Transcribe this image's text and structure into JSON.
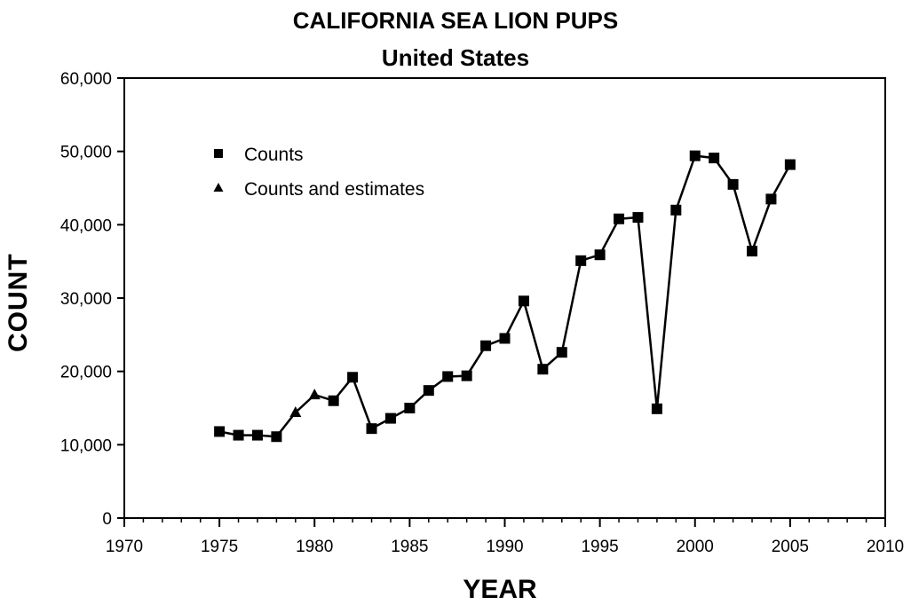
{
  "chart_data": {
    "type": "line",
    "title": "CALIFORNIA SEA LION PUPS",
    "subtitle": "United States",
    "xlabel": "YEAR",
    "ylabel": "COUNT",
    "xlim": [
      1970,
      2010
    ],
    "ylim": [
      0,
      60000
    ],
    "x_ticks": [
      1970,
      1975,
      1980,
      1985,
      1990,
      1995,
      2000,
      2005,
      2010
    ],
    "x_tick_labels": [
      "1970",
      "1975",
      "1980",
      "1985",
      "1990",
      "1995",
      "2000",
      "2005",
      "2010"
    ],
    "y_ticks": [
      0,
      10000,
      20000,
      30000,
      40000,
      50000,
      60000
    ],
    "y_tick_labels": [
      "0",
      "10,000",
      "20,000",
      "30,000",
      "40,000",
      "50,000",
      "60,000"
    ],
    "grid": false,
    "legend_position": "top-left",
    "legend": [
      {
        "label": "Counts",
        "marker": "square"
      },
      {
        "label": "Counts and estimates",
        "marker": "triangle"
      }
    ],
    "series": [
      {
        "name": "Counts",
        "marker": "square",
        "x": [
          1975,
          1976,
          1977,
          1978,
          1981,
          1982,
          1983,
          1984,
          1985,
          1986,
          1987,
          1988,
          1989,
          1990,
          1991,
          1992,
          1993,
          1994,
          1995,
          1996,
          1997,
          1998,
          1999,
          2000,
          2001,
          2002,
          2003,
          2004,
          2005
        ],
        "y": [
          11800,
          11300,
          11300,
          11100,
          16000,
          19200,
          12200,
          13600,
          15000,
          17400,
          19300,
          19400,
          23500,
          24500,
          29600,
          20300,
          22600,
          35100,
          35900,
          40800,
          41000,
          14900,
          42000,
          49400,
          49100,
          45500,
          36400,
          43500,
          48200
        ]
      },
      {
        "name": "Counts and estimates",
        "marker": "triangle",
        "x": [
          1979,
          1980
        ],
        "y": [
          14400,
          16800
        ]
      }
    ],
    "line_order_x": [
      1975,
      1976,
      1977,
      1978,
      1979,
      1980,
      1981,
      1982,
      1983,
      1984,
      1985,
      1986,
      1987,
      1988,
      1989,
      1990,
      1991,
      1992,
      1993,
      1994,
      1995,
      1996,
      1997,
      1998,
      1999,
      2000,
      2001,
      2002,
      2003,
      2004,
      2005
    ],
    "line_order_y": [
      11800,
      11300,
      11300,
      11100,
      14400,
      16800,
      16000,
      19200,
      12200,
      13600,
      15000,
      17400,
      19300,
      19400,
      23500,
      24500,
      29600,
      20300,
      22600,
      35100,
      35900,
      40800,
      41000,
      14900,
      42000,
      49400,
      49100,
      45500,
      36400,
      43500,
      48200
    ]
  },
  "colors": {
    "line": "#000000",
    "axis": "#000000",
    "background": "#ffffff"
  }
}
